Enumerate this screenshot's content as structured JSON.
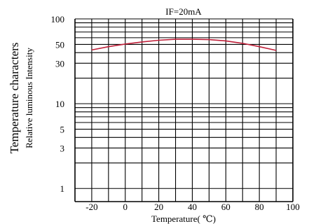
{
  "chart_data": {
    "type": "line",
    "title": "IF=20mA",
    "xlabel": "Temperature( ℃)",
    "ylabel": "Temperature characters",
    "ylabel_sub": "Relative luminous Intensity",
    "x_scale": "linear",
    "y_scale": "log",
    "xlim": [
      -30,
      100
    ],
    "ylim": [
      0.7,
      100
    ],
    "x_ticks": [
      -20,
      0,
      20,
      40,
      60,
      80,
      100
    ],
    "x_tick_labels": [
      "-20",
      "0",
      "20",
      "40",
      "60",
      "80",
      "100"
    ],
    "y_ticks": [
      1,
      3,
      5,
      10,
      30,
      50,
      100
    ],
    "y_tick_labels": [
      "1",
      "3",
      "5",
      "10",
      "30",
      "50",
      "100"
    ],
    "grid": true,
    "series": [
      {
        "color": "#c0203a",
        "x": [
          -20,
          -10,
          0,
          10,
          20,
          30,
          40,
          50,
          60,
          70,
          80,
          90
        ],
        "y": [
          43,
          47,
          50.5,
          53.5,
          56,
          57.5,
          57.5,
          57,
          55,
          51.5,
          47,
          42.5
        ]
      }
    ]
  }
}
